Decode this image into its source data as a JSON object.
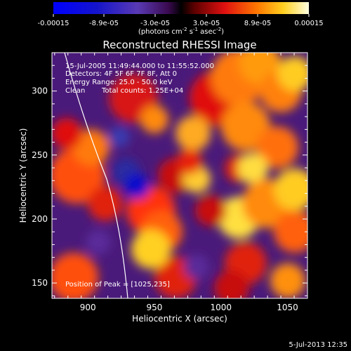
{
  "colorbar": {
    "ticks": [
      "-0.00015",
      "-8.9e-05",
      "-3.0e-05",
      "3.0e-05",
      "8.9e-05",
      "0.00015"
    ],
    "units_line": "(photons cm",
    "units_exp1": "-2",
    "units_mid": " s",
    "units_exp2": "-1",
    "units_end": " asec",
    "units_exp3": "-2",
    "units_close": ")"
  },
  "chart_data": {
    "type": "heatmap",
    "title": "Reconstructed RHESSI Image",
    "xlabel": "Heliocentric X (arcsec)",
    "ylabel": "Heliocentric Y (arcsec)",
    "xlim": [
      873,
      1065
    ],
    "ylim": [
      138,
      330
    ],
    "xticks": [
      900,
      950,
      1000,
      1050
    ],
    "yticks": [
      150,
      200,
      250,
      300
    ],
    "colorscale_range": [
      -0.00015,
      0.00015
    ],
    "annotations": [
      "15-Jul-2005 11:49:44.000 to 11:55:52.000",
      "Detectors: 4F 5F 6F 7F 8F, Att 0",
      "Energy Range: 25.0 - 50.0 keV",
      "Clean",
      "Total counts: 1.25E+04"
    ],
    "peak_label": "Position of Peak = [1025,235]",
    "peak": [
      1025,
      235
    ]
  },
  "footer": {
    "date": "5-Jul-2013 12:35"
  }
}
